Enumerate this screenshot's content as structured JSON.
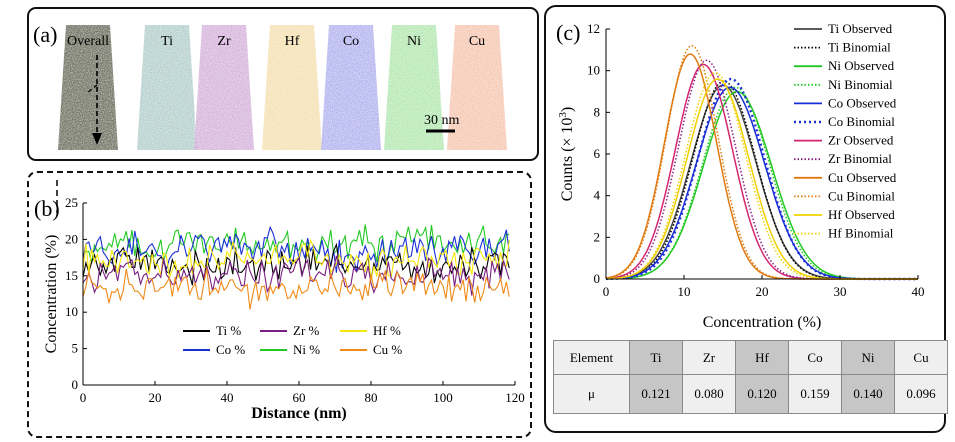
{
  "panel_a": {
    "label": "(a)",
    "scale_bar": "30 nm",
    "columns": [
      {
        "name": "Overall",
        "color": "#6b6e5e"
      },
      {
        "name": "Ti",
        "color": "#a8c8c4"
      },
      {
        "name": "Zr",
        "color": "#cfa8d6"
      },
      {
        "name": "Hf",
        "color": "#f3dca6"
      },
      {
        "name": "Co",
        "color": "#a7a8ec"
      },
      {
        "name": "Ni",
        "color": "#a8e4a6"
      },
      {
        "name": "Cu",
        "color": "#f4bea6"
      }
    ]
  },
  "panel_b": {
    "label": "(b)"
  },
  "panel_c": {
    "label": "(c)"
  },
  "table": {
    "header": [
      "Element",
      "Ti",
      "Zr",
      "Hf",
      "Co",
      "Ni",
      "Cu"
    ],
    "row_label": "μ",
    "values": [
      "0.121",
      "0.080",
      "0.120",
      "0.159",
      "0.140",
      "0.096"
    ]
  },
  "chart_data": [
    {
      "type": "line",
      "xlabel": "Distance (nm)",
      "ylabel": "Concentration (%)",
      "xlim": [
        0,
        120
      ],
      "ylim": [
        0,
        25
      ],
      "xticks": [
        0,
        20,
        40,
        60,
        80,
        100,
        120
      ],
      "yticks": [
        0,
        5,
        10,
        15,
        20,
        25
      ],
      "legend_position": "bottom-center",
      "series": [
        {
          "name": "Ti %",
          "color": "#000000",
          "mean": 16.5,
          "noise": 1.6
        },
        {
          "name": "Zr %",
          "color": "#7a1f82",
          "mean": 15.3,
          "noise": 1.6
        },
        {
          "name": "Hf %",
          "color": "#f5e60a",
          "mean": 17.0,
          "noise": 1.6
        },
        {
          "name": "Co %",
          "color": "#1a2fd6",
          "mean": 18.6,
          "noise": 1.7
        },
        {
          "name": "Ni %",
          "color": "#22c922",
          "mean": 19.3,
          "noise": 1.7
        },
        {
          "name": "Cu %",
          "color": "#f08a18",
          "mean": 13.6,
          "noise": 1.6
        }
      ]
    },
    {
      "type": "line",
      "xlabel": "Concentration (%)",
      "ylabel": "Counts (× 10",
      "ylabel_sup": "3",
      "ylabel_end": ")",
      "xlim": [
        0,
        40
      ],
      "ylim": [
        0,
        12
      ],
      "xticks": [
        0,
        10,
        20,
        30,
        40
      ],
      "yticks": [
        0,
        2,
        4,
        6,
        8,
        10,
        12
      ],
      "legend_position": "top-right",
      "series": [
        {
          "name": "Ti Observed",
          "color": "#444444",
          "style": "solid",
          "peak_x": 15.0,
          "peak_y": 9.3,
          "sigma": 4.1
        },
        {
          "name": "Ti Binomial",
          "color": "#000000",
          "style": "dotted",
          "peak_x": 15.1,
          "peak_y": 9.5,
          "sigma": 4.0
        },
        {
          "name": "Ni Observed",
          "color": "#22c922",
          "style": "solid",
          "peak_x": 16.8,
          "peak_y": 9.0,
          "sigma": 4.3
        },
        {
          "name": "Ni Binomial",
          "color": "#22c922",
          "style": "dotted",
          "peak_x": 16.6,
          "peak_y": 9.2,
          "sigma": 4.2
        },
        {
          "name": "Co Observed",
          "color": "#1a2fd6",
          "style": "solid",
          "peak_x": 15.9,
          "peak_y": 9.2,
          "sigma": 4.3
        },
        {
          "name": "Co Binomial",
          "color": "#1a2fd6",
          "style": "dotted-bold",
          "peak_x": 16.0,
          "peak_y": 9.6,
          "sigma": 4.2
        },
        {
          "name": "Zr Observed",
          "color": "#d4266e",
          "style": "solid",
          "peak_x": 12.5,
          "peak_y": 10.3,
          "sigma": 3.6
        },
        {
          "name": "Zr Binomial",
          "color": "#8a1f8a",
          "style": "dotted",
          "peak_x": 12.9,
          "peak_y": 10.5,
          "sigma": 3.6
        },
        {
          "name": "Cu Observed",
          "color": "#e07a10",
          "style": "solid",
          "peak_x": 10.8,
          "peak_y": 10.8,
          "sigma": 3.3
        },
        {
          "name": "Cu Binomial",
          "color": "#e07a10",
          "style": "dotted",
          "peak_x": 11.0,
          "peak_y": 11.2,
          "sigma": 3.3
        },
        {
          "name": "Hf Observed",
          "color": "#f0d000",
          "style": "solid",
          "peak_x": 14.3,
          "peak_y": 9.6,
          "sigma": 3.9
        },
        {
          "name": "Hf Binomial",
          "color": "#f0d000",
          "style": "dotted",
          "peak_x": 14.0,
          "peak_y": 9.9,
          "sigma": 3.8
        }
      ]
    }
  ]
}
